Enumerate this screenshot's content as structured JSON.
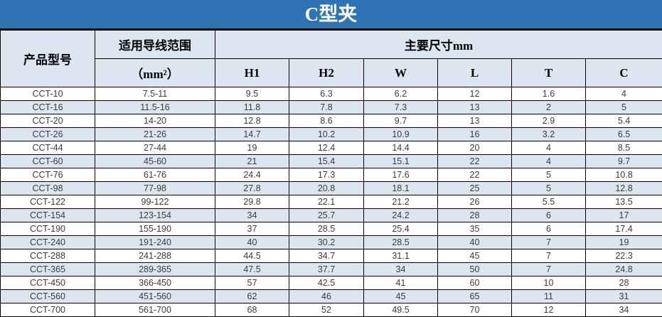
{
  "title": "C型夹",
  "colors": {
    "title_bg": "#2E74B5",
    "title_text": "#FFFFFF",
    "header_bg": "#DCE6F1",
    "row_alt_bg": "#DCE6F1",
    "row_bg": "#FFFFFF",
    "border": "#000000",
    "data_text": "#3B3B3B"
  },
  "header": {
    "product_model": "产品型号",
    "wire_range": "适用导线范围",
    "wire_range_unit": "（mm²）",
    "dimensions_group": "主要尺寸mm",
    "dimension_cols": [
      "H1",
      "H2",
      "W",
      "L",
      "T",
      "C"
    ]
  },
  "chart_data": {
    "type": "table",
    "title": "C型夹",
    "columns": [
      "产品型号",
      "适用导线范围（mm²）",
      "H1",
      "H2",
      "W",
      "L",
      "T",
      "C"
    ],
    "rows": [
      {
        "model": "CCT-10",
        "range": "7.5-11",
        "values": [
          "9.5",
          "6.3",
          "6.2",
          "12",
          "1.6",
          "4"
        ]
      },
      {
        "model": "CCT-16",
        "range": "11.5-16",
        "values": [
          "11.8",
          "7.8",
          "7.3",
          "13",
          "2",
          "5"
        ]
      },
      {
        "model": "CCT-20",
        "range": "14-20",
        "values": [
          "12.8",
          "8.6",
          "9.7",
          "13",
          "2.9",
          "5.4"
        ]
      },
      {
        "model": "CCT-26",
        "range": "21-26",
        "values": [
          "14.7",
          "10.2",
          "10.9",
          "16",
          "3.2",
          "6.5"
        ]
      },
      {
        "model": "CCT-44",
        "range": "27-44",
        "values": [
          "19",
          "12.4",
          "14.4",
          "20",
          "4",
          "8.5"
        ]
      },
      {
        "model": "CCT-60",
        "range": "45-60",
        "values": [
          "21",
          "15.4",
          "15.1",
          "22",
          "4",
          "9.7"
        ]
      },
      {
        "model": "CCT-76",
        "range": "61-76",
        "values": [
          "24.4",
          "17.3",
          "17.6",
          "22",
          "5",
          "10.8"
        ]
      },
      {
        "model": "CCT-98",
        "range": "77-98",
        "values": [
          "27.8",
          "20.8",
          "18.1",
          "25",
          "5",
          "12.8"
        ]
      },
      {
        "model": "CCT-122",
        "range": "99-122",
        "values": [
          "29.8",
          "22.1",
          "21.2",
          "26",
          "5.5",
          "13.5"
        ]
      },
      {
        "model": "CCT-154",
        "range": "123-154",
        "values": [
          "34",
          "25.7",
          "24.2",
          "28",
          "6",
          "17"
        ]
      },
      {
        "model": "CCT-190",
        "range": "155-190",
        "values": [
          "37",
          "28.5",
          "25.4",
          "35",
          "6",
          "17.4"
        ]
      },
      {
        "model": "CCT-240",
        "range": "191-240",
        "values": [
          "40",
          "30.2",
          "28.5",
          "40",
          "7",
          "19"
        ]
      },
      {
        "model": "CCT-288",
        "range": "241-288",
        "values": [
          "44.5",
          "34.7",
          "31.1",
          "45",
          "7",
          "22.3"
        ]
      },
      {
        "model": "CCT-365",
        "range": "289-365",
        "values": [
          "47.5",
          "37.7",
          "34",
          "50",
          "7",
          "24.8"
        ]
      },
      {
        "model": "CCT-450",
        "range": "366-450",
        "values": [
          "57",
          "42.5",
          "41",
          "60",
          "10",
          "28"
        ]
      },
      {
        "model": "CCT-560",
        "range": "451-560",
        "values": [
          "62",
          "46",
          "45",
          "65",
          "11",
          "31"
        ]
      },
      {
        "model": "CCT-700",
        "range": "561-700",
        "values": [
          "68",
          "52",
          "49.5",
          "70",
          "12",
          "34"
        ]
      }
    ]
  }
}
